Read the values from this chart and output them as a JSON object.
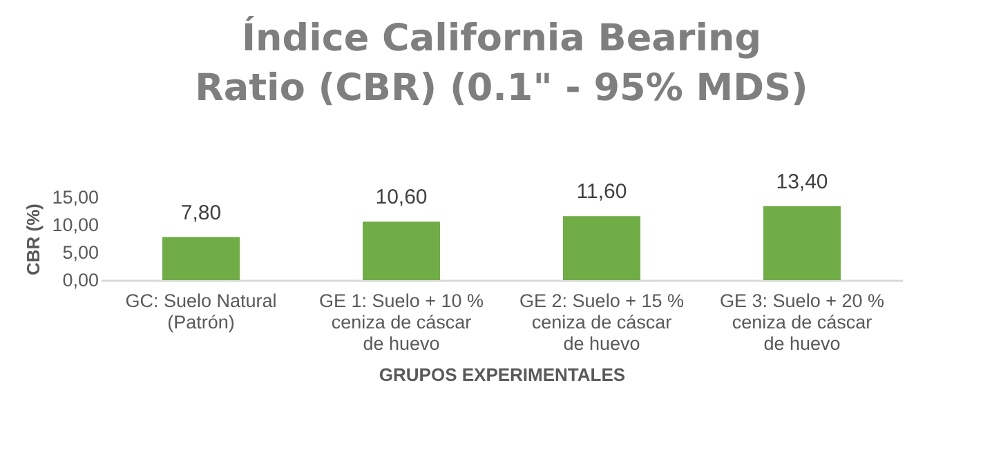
{
  "chart_data": {
    "type": "bar",
    "title": "Índice California Bearing Ratio (CBR) (0.1\" - 95% MDS)",
    "xlabel": "GRUPOS EXPERIMENTALES",
    "ylabel": "CBR (%)",
    "categories": [
      "GC: Suelo Natural (Patrón)",
      "GE 1: Suelo + 10 % ceniza de cáscar de huevo",
      "GE 2: Suelo + 15 % ceniza de cáscar de huevo",
      "GE 3: Suelo + 20 % ceniza de cáscar de huevo"
    ],
    "values": [
      7.8,
      10.6,
      11.6,
      13.4
    ],
    "value_labels": [
      "7,80",
      "10,60",
      "11,60",
      "13,40"
    ],
    "color": "#70ad47",
    "ylim": [
      0,
      15
    ],
    "yticks": [
      {
        "value": 0,
        "label": "0,00"
      },
      {
        "value": 5,
        "label": "5,00"
      },
      {
        "value": 10,
        "label": "10,00"
      },
      {
        "value": 15,
        "label": "15,00"
      }
    ],
    "grid": false
  }
}
